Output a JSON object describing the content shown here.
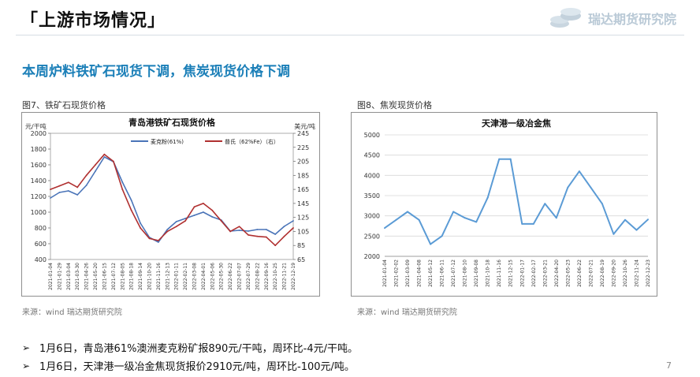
{
  "header": {
    "title": "「上游市场情况」",
    "brand": "瑞达期货研究院"
  },
  "section": {
    "heading": "本周炉料铁矿石现货下调，焦炭现货价格下调"
  },
  "figures": [
    {
      "caption": "图7、铁矿石现货价格",
      "source": "来源：wind    瑞达期货研究院"
    },
    {
      "caption": "图8、焦炭现货价格",
      "source": "来源：wind    瑞达期货研究院"
    }
  ],
  "bullets": [
    "1月6日，青岛港61%澳洲麦克粉矿报890元/干吨，周环比-4元/干吨。",
    "1月6日，天津港一级冶金焦现货报价2910元/吨，周环比-100元/吨。"
  ],
  "page_number": "7",
  "colors": {
    "accent": "#1b7fb8",
    "series_blue": "#4a74b8",
    "series_red": "#b03030",
    "coke_line": "#5b9bd5"
  },
  "chart_data": [
    {
      "type": "line",
      "title": "青岛港铁矿石现货价格",
      "ylabel_left": "元/干吨",
      "ylabel_right": "美元/吨",
      "ylim_left": [
        400,
        2000
      ],
      "yticks_left": [
        "400",
        "600",
        "800",
        "1000",
        "1200",
        "1400",
        "1600",
        "1800",
        "2000"
      ],
      "ylim_right": [
        65,
        245
      ],
      "yticks_right": [
        "65",
        "85",
        "105",
        "125",
        "145",
        "165",
        "185",
        "205",
        "225",
        "245"
      ],
      "grid": false,
      "legend": "top",
      "categories": [
        "2021-01-04",
        "2021-01-29",
        "2021-03-04",
        "2021-03-30",
        "2021-04-26",
        "2021-05-20",
        "2021-06-15",
        "2021-07-12",
        "2021-08-05",
        "2021-08-18",
        "2021-09-14",
        "2021-10-20",
        "2021-11-16",
        "2021-12-13",
        "2022-01-11",
        "2022-02-11",
        "2022-03-08",
        "2022-04-01",
        "2022-05-06",
        "2022-05-30",
        "2022-06-22",
        "2022-07-07",
        "2022-07-29",
        "2022-08-22",
        "2022-09-16",
        "2022-10-25",
        "2022-11-21",
        "2022-12-19"
      ],
      "series": [
        {
          "name": "麦克粉(61%)",
          "axis": "left",
          "color": "#4a74b8",
          "values": [
            1180,
            1250,
            1270,
            1220,
            1340,
            1520,
            1700,
            1640,
            1380,
            1150,
            860,
            680,
            620,
            780,
            880,
            920,
            960,
            1000,
            940,
            900,
            760,
            770,
            760,
            780,
            780,
            720,
            820,
            890
          ]
        },
        {
          "name": "普氏（62%Fe）（右）",
          "axis": "right",
          "color": "#b03030",
          "values": [
            165,
            170,
            175,
            168,
            185,
            200,
            215,
            205,
            165,
            135,
            110,
            95,
            92,
            105,
            112,
            120,
            140,
            145,
            135,
            120,
            105,
            112,
            100,
            98,
            97,
            85,
            98,
            110
          ]
        }
      ]
    },
    {
      "type": "line",
      "title": "天津港一级冶金焦",
      "ylim": [
        2000,
        5000
      ],
      "yticks": [
        "2000",
        "2500",
        "3000",
        "3500",
        "4000",
        "4500",
        "5000"
      ],
      "grid": true,
      "categories": [
        "2021-01-04",
        "2021-02-02",
        "2021-03-09",
        "2021-04-08",
        "2021-05-12",
        "2021-06-11",
        "2021-07-12",
        "2021-08-10",
        "2021-09-08",
        "2021-10-18",
        "2021-11-16",
        "2021-12-15",
        "2022-01-17",
        "2022-02-17",
        "2022-03-21",
        "2022-04-20",
        "2022-05-23",
        "2022-06-22",
        "2022-07-21",
        "2022-08-19",
        "2022-09-20",
        "2022-10-26",
        "2022-11-24",
        "2022-12-23"
      ],
      "series": [
        {
          "name": "天津港一级冶金焦",
          "color": "#5b9bd5",
          "values": [
            2700,
            2900,
            3100,
            2900,
            2300,
            2500,
            3100,
            2950,
            2850,
            3450,
            4400,
            4400,
            2800,
            2800,
            3300,
            2950,
            3700,
            4100,
            3700,
            3300,
            2550,
            2900,
            2650,
            2910
          ]
        }
      ]
    }
  ]
}
